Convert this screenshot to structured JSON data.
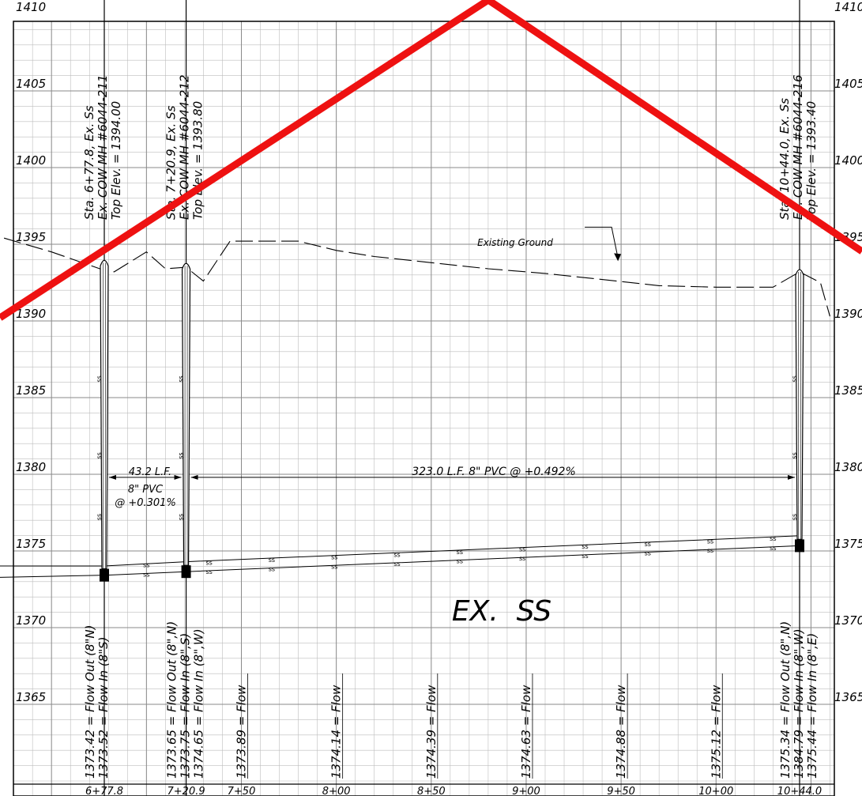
{
  "elevations": [
    {
      "value": 1410,
      "left_label": "1410",
      "right_label": "1410"
    },
    {
      "value": 1405,
      "left_label": "1405",
      "right_label": "1405"
    },
    {
      "value": 1400,
      "left_label": "1400",
      "right_label": "1400"
    },
    {
      "value": 1395,
      "left_label": "1395",
      "right_label": "1395"
    },
    {
      "value": 1390,
      "left_label": "1390",
      "right_label": "1390"
    },
    {
      "value": 1385,
      "left_label": "1385",
      "right_label": "1385"
    },
    {
      "value": 1380,
      "left_label": "1380",
      "right_label": "1380"
    },
    {
      "value": 1375,
      "left_label": "1375",
      "right_label": "1375"
    },
    {
      "value": 1370,
      "left_label": "1370",
      "right_label": "1370"
    },
    {
      "value": 1365,
      "left_label": "1365",
      "right_label": "1365"
    }
  ],
  "stations": [
    {
      "value": 677.8,
      "label": "6+77.8"
    },
    {
      "value": 720.9,
      "label": "7+20.9"
    },
    {
      "value": 750,
      "label": "7+50"
    },
    {
      "value": 800,
      "label": "8+00"
    },
    {
      "value": 850,
      "label": "8+50"
    },
    {
      "value": 900,
      "label": "9+00"
    },
    {
      "value": 950,
      "label": "9+50"
    },
    {
      "value": 1000,
      "label": "10+00"
    },
    {
      "value": 1044,
      "label": "10+44.0"
    }
  ],
  "manholes": [
    {
      "station": 677.8,
      "rim_elev": 1394.0,
      "invert_elev": 1373.42,
      "info": [
        "Sta. 6+77.8, Ex. Ss",
        "Ex. COW MH #6044-211",
        "Top Elev. = 1394.00"
      ],
      "flows": [
        "1373.42 = Flow Out (8\"N)",
        "1373.52 = Flow In (8\"S)"
      ]
    },
    {
      "station": 720.9,
      "rim_elev": 1393.8,
      "invert_elev": 1373.65,
      "info": [
        "Sta. 7+20.9, Ex. Ss",
        "Ex. COW MH #6044-212",
        "Top Elev. = 1393.80"
      ],
      "flows": [
        "1373.65 = Flow Out (8\",N)",
        "1373.75 = Flow In (8\",S)",
        "1374.65 = Flow In (8\",W)"
      ]
    },
    {
      "station": 1044,
      "rim_elev": 1393.4,
      "invert_elev": 1375.34,
      "info": [
        "Sta. 10+44.0, Ex. Ss",
        "Ex. COW MH #6044-216",
        "Top Elev. = 1393.40"
      ],
      "flows": [
        "1375.34 = Flow Out (8\",N)",
        "1384.79 = Flow In (8\",W)",
        "1375.44 = Flow In (8\",E)"
      ]
    }
  ],
  "flow_labels": [
    {
      "station": 750,
      "text": "1373.89 = Flow"
    },
    {
      "station": 800,
      "text": "1374.14 = Flow"
    },
    {
      "station": 850,
      "text": "1374.39 = Flow"
    },
    {
      "station": 900,
      "text": "1374.63 = Flow"
    },
    {
      "station": 950,
      "text": "1374.88 = Flow"
    },
    {
      "station": 1000,
      "text": "1375.12 = Flow"
    }
  ],
  "pipe_segments": [
    {
      "label_1": "43.2 L.F.",
      "label_2": "8\" PVC",
      "label_3": "@ +0.301%"
    },
    {
      "label_1": "323.0 L.F. 8\" PVC @ +0.492%"
    }
  ],
  "pipe_marker": "ss",
  "ground_label": "Existing Ground",
  "main_label": "EX.  SS",
  "ground_profile": [
    [
      625,
      1395.4
    ],
    [
      650,
      1394.5
    ],
    [
      677.8,
      1393.3
    ],
    [
      683,
      1393.2
    ],
    [
      700,
      1394.5
    ],
    [
      710,
      1393.4
    ],
    [
      720.9,
      1393.5
    ],
    [
      730,
      1392.6
    ],
    [
      744,
      1395.2
    ],
    [
      768,
      1395.2
    ],
    [
      780,
      1395.2
    ],
    [
      800,
      1394.6
    ],
    [
      820,
      1394.2
    ],
    [
      850,
      1393.8
    ],
    [
      880,
      1393.4
    ],
    [
      910,
      1393.1
    ],
    [
      940,
      1392.7
    ],
    [
      970,
      1392.3
    ],
    [
      1000,
      1392.2
    ],
    [
      1030,
      1392.2
    ],
    [
      1044,
      1393.2
    ],
    [
      1055,
      1392.5
    ],
    [
      1060,
      1390.3
    ]
  ],
  "stamp_color": "#ee1111"
}
